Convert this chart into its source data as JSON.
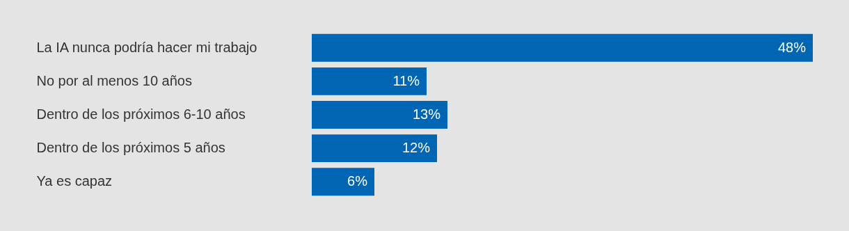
{
  "chart_data": {
    "type": "bar",
    "orientation": "horizontal",
    "categories": [
      "La IA nunca podría hacer mi trabajo",
      "No por al menos 10 años",
      "Dentro de los próximos 6-10 años",
      "Dentro de los próximos 5 años",
      "Ya es capaz"
    ],
    "values": [
      48,
      11,
      13,
      12,
      6
    ],
    "value_labels": [
      "48%",
      "11%",
      "13%",
      "12%",
      "6%"
    ],
    "color": "#0066b3"
  }
}
